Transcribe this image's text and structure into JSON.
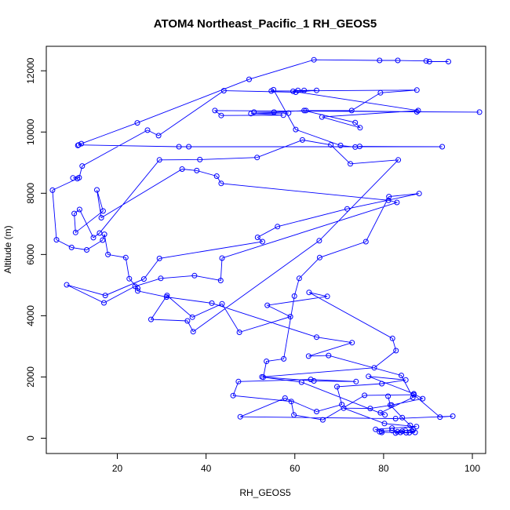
{
  "chart_data": {
    "type": "line",
    "title": "ATOM4 Northeast_Pacific_1 RH_GEOS5",
    "xlabel": "RH_GEOS5",
    "ylabel": "Altitude (m)",
    "xlim": [
      4,
      103
    ],
    "ylim": [
      -500,
      12800
    ],
    "xticks": [
      20,
      40,
      60,
      80,
      100
    ],
    "yticks": [
      0,
      2000,
      4000,
      6000,
      8000,
      10000,
      12000
    ],
    "grid": false,
    "legend": "none",
    "series_color": "#0000ff",
    "marker": "open-circle",
    "points": [
      [
        94.6,
        12300
      ],
      [
        90.3,
        12300
      ],
      [
        89.6,
        12320
      ],
      [
        83.2,
        12340
      ],
      [
        79.1,
        12340
      ],
      [
        64.3,
        12360
      ],
      [
        49.7,
        11720
      ],
      [
        24.5,
        10300
      ],
      [
        11.9,
        9620
      ],
      [
        11.1,
        9560
      ],
      [
        11.3,
        9580
      ],
      [
        33.9,
        9520
      ],
      [
        36.1,
        9520
      ],
      [
        93.2,
        9520
      ],
      [
        74.6,
        9530
      ],
      [
        73.6,
        9510
      ],
      [
        70.3,
        9560
      ],
      [
        60.2,
        10080
      ],
      [
        55.2,
        11380
      ],
      [
        54.7,
        11340
      ],
      [
        87.5,
        11370
      ],
      [
        79.3,
        11280
      ],
      [
        72.8,
        10700
      ],
      [
        62.5,
        10700
      ],
      [
        55.3,
        10650
      ],
      [
        50.8,
        10650
      ],
      [
        58.6,
        10620
      ],
      [
        50.1,
        10600
      ],
      [
        57.4,
        10550
      ],
      [
        43.4,
        10540
      ],
      [
        42.0,
        10700
      ],
      [
        101.6,
        10650
      ],
      [
        87.5,
        10660
      ],
      [
        62.1,
        10700
      ],
      [
        73.6,
        10310
      ],
      [
        74.7,
        10140
      ],
      [
        66.1,
        10490
      ],
      [
        87.8,
        10700
      ],
      [
        59.6,
        11330
      ],
      [
        60.7,
        11360
      ],
      [
        62.1,
        11360
      ],
      [
        64.9,
        11360
      ],
      [
        60.2,
        11300
      ],
      [
        44.0,
        11350
      ],
      [
        29.3,
        9880
      ],
      [
        26.8,
        10060
      ],
      [
        12.1,
        8890
      ],
      [
        11.4,
        8510
      ],
      [
        10.0,
        8500
      ],
      [
        11.0,
        8480
      ],
      [
        5.4,
        8100
      ],
      [
        6.3,
        6480
      ],
      [
        9.7,
        6230
      ],
      [
        13.1,
        6150
      ],
      [
        16.7,
        6470
      ],
      [
        17.1,
        6660
      ],
      [
        17.9,
        6000
      ],
      [
        21.9,
        5900
      ],
      [
        22.7,
        5210
      ],
      [
        24.6,
        4900
      ],
      [
        24.6,
        4810
      ],
      [
        31.1,
        4610
      ],
      [
        41.3,
        4410
      ],
      [
        64.9,
        3300
      ],
      [
        72.9,
        3120
      ],
      [
        63.1,
        2680
      ],
      [
        67.6,
        2700
      ],
      [
        84.0,
        2050
      ],
      [
        86.6,
        1330
      ],
      [
        79.3,
        830
      ],
      [
        80.3,
        760
      ],
      [
        61.5,
        1830
      ],
      [
        52.9,
        1990
      ],
      [
        53.6,
        2510
      ],
      [
        57.5,
        2590
      ],
      [
        59.9,
        4640
      ],
      [
        61.0,
        5220
      ],
      [
        65.6,
        5900
      ],
      [
        76.0,
        6420
      ],
      [
        81.2,
        7890
      ],
      [
        88.0,
        7990
      ],
      [
        71.8,
        7490
      ],
      [
        56.1,
        6910
      ],
      [
        51.6,
        6560
      ],
      [
        52.7,
        6420
      ],
      [
        29.5,
        5870
      ],
      [
        26.0,
        5200
      ],
      [
        17.3,
        4660
      ],
      [
        8.6,
        5010
      ],
      [
        17.0,
        4420
      ],
      [
        24.0,
        4960
      ],
      [
        29.8,
        5220
      ],
      [
        37.4,
        5310
      ],
      [
        43.3,
        5150
      ],
      [
        43.6,
        5880
      ],
      [
        83.0,
        7700
      ],
      [
        81.1,
        7770
      ],
      [
        43.4,
        8320
      ],
      [
        42.4,
        8560
      ],
      [
        37.9,
        8740
      ],
      [
        34.6,
        8790
      ],
      [
        16.4,
        7200
      ],
      [
        15.4,
        8110
      ],
      [
        16.8,
        7420
      ],
      [
        10.6,
        6720
      ],
      [
        10.3,
        7340
      ],
      [
        11.5,
        7470
      ],
      [
        14.6,
        6550
      ],
      [
        16.0,
        6700
      ],
      [
        29.5,
        9090
      ],
      [
        38.6,
        9100
      ],
      [
        51.5,
        9170
      ],
      [
        61.7,
        9740
      ],
      [
        68.1,
        9580
      ],
      [
        72.5,
        8960
      ],
      [
        83.3,
        9090
      ],
      [
        65.5,
        6450
      ],
      [
        37.1,
        3480
      ],
      [
        35.8,
        3830
      ],
      [
        27.6,
        3880
      ],
      [
        31.2,
        4660
      ],
      [
        36.9,
        3950
      ],
      [
        43.6,
        4390
      ],
      [
        47.5,
        3460
      ],
      [
        59.0,
        3970
      ],
      [
        53.8,
        4340
      ],
      [
        67.3,
        4630
      ],
      [
        63.2,
        4760
      ],
      [
        82.0,
        3260
      ],
      [
        82.8,
        2860
      ],
      [
        77.9,
        2300
      ],
      [
        52.6,
        2000
      ],
      [
        64.3,
        1870
      ],
      [
        73.8,
        1850
      ],
      [
        63.6,
        1920
      ],
      [
        47.3,
        1850
      ],
      [
        46.1,
        1390
      ],
      [
        59.2,
        1200
      ],
      [
        59.8,
        760
      ],
      [
        66.3,
        600
      ],
      [
        75.7,
        1400
      ],
      [
        86.8,
        1420
      ],
      [
        92.7,
        690
      ],
      [
        95.6,
        720
      ],
      [
        82.7,
        640
      ],
      [
        47.7,
        700
      ],
      [
        57.8,
        1310
      ],
      [
        64.9,
        870
      ],
      [
        70.6,
        1100
      ],
      [
        69.5,
        1680
      ],
      [
        79.6,
        1780
      ],
      [
        85.0,
        1900
      ],
      [
        76.6,
        2020
      ],
      [
        86.8,
        1450
      ],
      [
        88.8,
        1290
      ],
      [
        81.8,
        1080
      ],
      [
        77.0,
        970
      ],
      [
        71.0,
        980
      ],
      [
        80.2,
        480
      ],
      [
        87.4,
        380
      ],
      [
        81.9,
        330
      ],
      [
        78.2,
        290
      ],
      [
        79.1,
        210
      ],
      [
        79.5,
        230
      ],
      [
        81.9,
        250
      ],
      [
        83.1,
        210
      ],
      [
        84.2,
        230
      ],
      [
        85.1,
        180
      ],
      [
        85.8,
        180
      ],
      [
        86.4,
        240
      ],
      [
        87.1,
        190
      ],
      [
        79.6,
        190
      ],
      [
        83.8,
        190
      ],
      [
        82.7,
        170
      ],
      [
        84.9,
        250
      ],
      [
        86.7,
        280
      ],
      [
        86.0,
        420
      ],
      [
        84.2,
        670
      ],
      [
        81.5,
        1080
      ],
      [
        81.0,
        1370
      ]
    ]
  }
}
